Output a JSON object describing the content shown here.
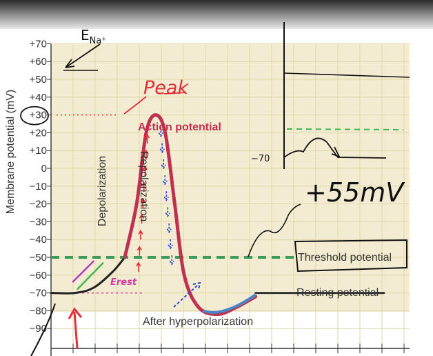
{
  "chart_data": {
    "type": "line",
    "title": "",
    "ylabel": "Membrane potential (mV)",
    "xlabel": "",
    "ylim": [
      -100,
      72
    ],
    "y_ticks": [
      "+70",
      "+60",
      "+50",
      "+40",
      "+30",
      "+20",
      "+10",
      "0",
      "−10",
      "−20",
      "−30",
      "−40",
      "−50",
      "−60",
      "−70",
      "−80",
      "−90"
    ],
    "y_tick_values": [
      70,
      60,
      50,
      40,
      30,
      20,
      10,
      0,
      -10,
      -20,
      -30,
      -40,
      -50,
      -60,
      -70,
      -80,
      -90
    ],
    "x_tick_count": 16,
    "series": [
      {
        "color": "#222222",
        "values": [
          [
            0,
            -70
          ],
          [
            1,
            -70
          ],
          [
            1.8,
            -67
          ],
          [
            2.6,
            -58
          ],
          [
            3.1,
            -50
          ]
        ]
      },
      {
        "color": "#c0314f",
        "values": [
          [
            3.1,
            -50
          ],
          [
            3.6,
            -20
          ],
          [
            4.0,
            20
          ],
          [
            4.4,
            30
          ],
          [
            4.8,
            20
          ],
          [
            5.2,
            -20
          ],
          [
            5.6,
            -60
          ],
          [
            6.2,
            -78
          ],
          [
            7.0,
            -82
          ],
          [
            7.8,
            -78
          ],
          [
            8.6,
            -72
          ]
        ]
      },
      {
        "color": "#333333",
        "values": [
          [
            8.6,
            -70
          ],
          [
            14,
            -70
          ]
        ]
      }
    ],
    "threshold": {
      "value": -50,
      "label": "Threshold potential",
      "color": "#3a9a5b"
    },
    "peak_ref": {
      "value": 30,
      "color": "#e0303a"
    },
    "annotations": {
      "action_potential": "Action potential",
      "depolarization": "Depolarization",
      "repolarization": "Repolarization",
      "resting": "Resting potential",
      "after_hyper": "After hyperpolarization"
    }
  },
  "handwriting": {
    "ena": "E",
    "ena_sub": "Na⁺",
    "peak": "Peak",
    "erest": "Erest",
    "minus70": "−70",
    "delta": "+55mV"
  },
  "colors": {
    "background_grid": "#f3ecd2",
    "grid_line": "#e2d6a8",
    "ap_curve": "#c0314f",
    "depol_arrows": "#e0303a",
    "repol_arrows": "#2a46d4",
    "threshold": "#3a9a5b",
    "ink": "#111111",
    "top_band": "#2d2d2d"
  }
}
